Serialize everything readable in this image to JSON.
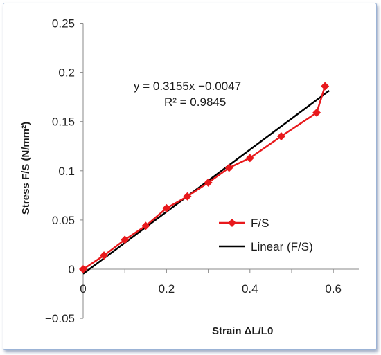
{
  "chart_data": {
    "type": "scatter",
    "xlabel": "Strain ΔL/L0",
    "ylabel": "Stress F/S (N/mm²)",
    "xlim": [
      0,
      0.65
    ],
    "ylim": [
      -0.05,
      0.25
    ],
    "x_ticks": [
      "0",
      "0.2",
      "0.4",
      "0.6"
    ],
    "y_ticks": [
      "−0.05",
      "0",
      "0.05",
      "0.1",
      "0.15",
      "0.2",
      "0.25"
    ],
    "grid": false,
    "legend_position": "right",
    "series": [
      {
        "name": "F/S",
        "color": "#e8191c",
        "marker": "diamond",
        "x": [
          0,
          0.05,
          0.1,
          0.15,
          0.2,
          0.25,
          0.3,
          0.35,
          0.4,
          0.475,
          0.56,
          0.58
        ],
        "y": [
          0,
          0.014,
          0.03,
          0.044,
          0.062,
          0.074,
          0.088,
          0.103,
          0.113,
          0.135,
          0.159,
          0.186
        ]
      }
    ],
    "trendline": {
      "name": "Linear (F/S)",
      "color": "#000000",
      "slope": 0.3155,
      "intercept": -0.0047,
      "x_range": [
        0,
        0.59
      ],
      "equation": "y = 0.3155x −0.0047",
      "r_squared": "R² = 0.9845"
    }
  }
}
